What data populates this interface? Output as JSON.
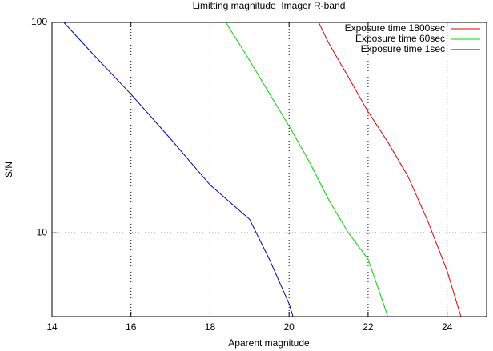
{
  "chart_data": {
    "type": "line",
    "title": "Limitting magnitude  Imager R-band",
    "xlabel": "Aparent magnitude",
    "ylabel": "S/N",
    "xlim": [
      14,
      25
    ],
    "xticks": [
      14,
      16,
      18,
      20,
      22,
      24
    ],
    "ylim": [
      4,
      100
    ],
    "yticks": [
      10,
      100
    ],
    "ylog": true,
    "grid": true,
    "legend": "top-right",
    "series": [
      {
        "name": "Exposure time 1800sec",
        "color": "#e00000",
        "x": [
          20.75,
          21,
          21.5,
          22,
          22.5,
          23,
          23.5,
          24,
          24.35
        ],
        "values": [
          100,
          80,
          55,
          37.6,
          27,
          18.7,
          11.5,
          6.6,
          4
        ]
      },
      {
        "name": "Exposure time 60sec",
        "color": "#00d000",
        "x": [
          18.4,
          19,
          19.5,
          20,
          20.5,
          21,
          21.5,
          22,
          22.5
        ],
        "values": [
          100,
          66,
          46,
          32.2,
          22,
          14.4,
          10,
          7.5,
          4
        ]
      },
      {
        "name": "Exposure time 1sec",
        "color": "#0000b0",
        "x": [
          14.3,
          15,
          16,
          17,
          18,
          19,
          19.5,
          20,
          20.1
        ],
        "values": [
          100,
          72,
          45.6,
          28,
          16.9,
          11.6,
          7.5,
          4.6,
          4
        ]
      }
    ]
  }
}
